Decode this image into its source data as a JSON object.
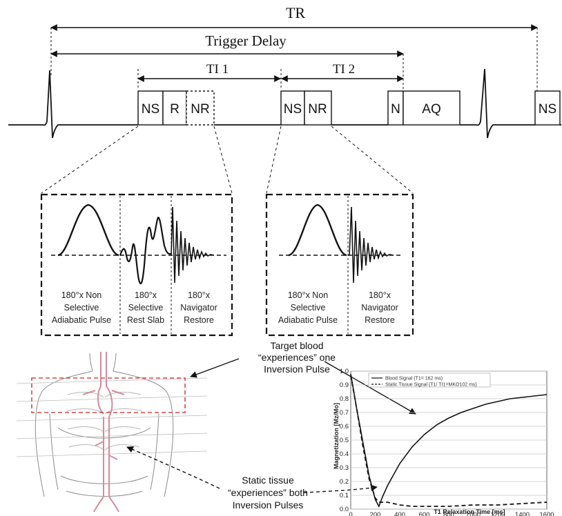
{
  "timing": {
    "tr_label": "TR",
    "trigger_delay_label": "Trigger Delay",
    "ti1_label": "TI 1",
    "ti2_label": "TI 2"
  },
  "pulse_boxes": {
    "ns1": "NS",
    "r": "R",
    "nr1": "NR",
    "ns2": "NS",
    "nr2": "NR",
    "n": "N",
    "aq": "AQ",
    "ns3": "NS"
  },
  "zoom_left": {
    "col1": [
      "180°x Non",
      "Selective",
      "Adiabatic Pulse"
    ],
    "col2": [
      "180°x",
      "Selective",
      "Rest Slab"
    ],
    "col3": [
      "180°x",
      "Navigator",
      "Restore"
    ]
  },
  "zoom_right": {
    "col1": [
      "180°x Non",
      "Selective",
      "Adiabatic Pulse"
    ],
    "col2": [
      "180°x",
      "Navigator",
      "Restore"
    ]
  },
  "annotations": {
    "target_blood": [
      "Target blood",
      "“experiences” one",
      "Inversion Pulse"
    ],
    "static_tissue": [
      "Static tissue",
      "“experiences” both",
      "Inversion Pulses"
    ]
  },
  "colors": {
    "vessel": "#d58a9c",
    "slab_box": "#d04848",
    "ink": "#111111"
  },
  "chart_data": {
    "type": "line",
    "title": "",
    "xlabel": "T1 Relaxation Time [ms]",
    "ylabel": "Magnetization [Mz/Mo]",
    "xlim": [
      0,
      1600
    ],
    "ylim": [
      0.0,
      1.0
    ],
    "xticks": [
      0,
      200,
      400,
      600,
      800,
      1000,
      1200,
      1400,
      1600
    ],
    "yticks": [
      0.0,
      0.1,
      0.2,
      0.3,
      0.4,
      0.5,
      0.6,
      0.7,
      0.8,
      0.9,
      1.0
    ],
    "grid": true,
    "legend_position": "top",
    "series": [
      {
        "name": "Blood Signal (T1= 162 ms)",
        "style": "solid",
        "x": [
          0,
          50,
          100,
          150,
          200,
          230,
          260,
          300,
          400,
          500,
          600,
          700,
          800,
          900,
          1000,
          1100,
          1200,
          1300,
          1400,
          1500,
          1600
        ],
        "y": [
          0.98,
          0.72,
          0.48,
          0.24,
          0.07,
          0.02,
          0.09,
          0.17,
          0.33,
          0.45,
          0.54,
          0.61,
          0.66,
          0.7,
          0.73,
          0.76,
          0.78,
          0.8,
          0.81,
          0.82,
          0.83
        ]
      },
      {
        "name": "Static Tissue Signal (T1/ TI1=MKO102 ms)",
        "style": "dashed",
        "x": [
          0,
          50,
          100,
          150,
          200,
          230,
          260,
          300,
          400,
          500,
          600,
          800,
          1000,
          1200,
          1400,
          1600
        ],
        "y": [
          0.97,
          0.72,
          0.45,
          0.22,
          0.08,
          0.05,
          0.05,
          0.05,
          0.03,
          0.02,
          0.02,
          0.02,
          0.03,
          0.03,
          0.04,
          0.05
        ]
      }
    ]
  }
}
